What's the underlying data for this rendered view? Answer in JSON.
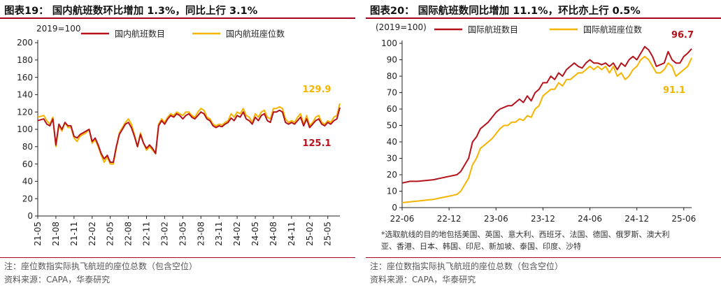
{
  "colors": {
    "domestic_flights": "#b5121b",
    "domestic_seats": "#f5b400",
    "accent": "#a8001e"
  },
  "chart_data": [
    {
      "type": "line",
      "title": "图表19： 国内航班数环比增加 1.3%，同比上行 3.1%",
      "base_label": "2019=100",
      "ylim": [
        0,
        200
      ],
      "yticks": [
        "0",
        "20",
        "40",
        "60",
        "80",
        "100",
        "120",
        "140",
        "160",
        "180",
        "200"
      ],
      "xticks": [
        "21-05",
        "21-08",
        "21-11",
        "22-02",
        "22-05",
        "22-08",
        "22-11",
        "23-02",
        "23-05",
        "23-08",
        "23-11",
        "24-02",
        "24-05",
        "24-08",
        "24-11",
        "25-02",
        "25-05"
      ],
      "xrange_months": [
        "21-05",
        "25-07"
      ],
      "grid": false,
      "legend_position": "top",
      "annotations": [
        {
          "text": "129.9",
          "series": "国内航班座位数"
        },
        {
          "text": "125.1",
          "series": "国内航班数目"
        }
      ],
      "series": [
        {
          "name": "国内航班数目",
          "color": "#b5121b",
          "x": [
            "21-05",
            "21-06",
            "21-06",
            "21-07",
            "21-07",
            "21-08",
            "21-08",
            "21-09",
            "21-09",
            "21-10",
            "21-10",
            "21-11",
            "21-11",
            "21-12",
            "21-12",
            "22-01",
            "22-01",
            "22-02",
            "22-02",
            "22-03",
            "22-03",
            "22-04",
            "22-04",
            "22-05",
            "22-05",
            "22-06",
            "22-06",
            "22-07",
            "22-07",
            "22-08",
            "22-08",
            "22-09",
            "22-09",
            "22-10",
            "22-10",
            "22-11",
            "22-11",
            "22-12",
            "22-12",
            "23-01",
            "23-01",
            "23-02",
            "23-02",
            "23-03",
            "23-03",
            "23-04",
            "23-04",
            "23-05",
            "23-05",
            "23-06",
            "23-06",
            "23-07",
            "23-07",
            "23-08",
            "23-08",
            "23-09",
            "23-09",
            "23-10",
            "23-10",
            "23-11",
            "23-11",
            "23-12",
            "23-12",
            "24-01",
            "24-01",
            "24-02",
            "24-02",
            "24-03",
            "24-03",
            "24-04",
            "24-04",
            "24-05",
            "24-05",
            "24-06",
            "24-06",
            "24-07",
            "24-07",
            "24-08",
            "24-08",
            "24-09",
            "24-09",
            "24-10",
            "24-10",
            "24-11",
            "24-11",
            "24-12",
            "24-12",
            "25-01",
            "25-01",
            "25-02",
            "25-02",
            "25-03",
            "25-03",
            "25-04",
            "25-04",
            "25-05",
            "25-05",
            "25-06",
            "25-06",
            "25-07"
          ],
          "values": [
            110,
            112,
            106,
            104,
            112,
            82,
            106,
            100,
            108,
            104,
            104,
            92,
            90,
            94,
            96,
            98,
            100,
            86,
            90,
            82,
            72,
            66,
            70,
            62,
            62,
            80,
            94,
            100,
            106,
            108,
            102,
            92,
            80,
            94,
            84,
            78,
            82,
            78,
            72,
            104,
            110,
            106,
            112,
            116,
            114,
            118,
            116,
            112,
            116,
            118,
            114,
            112,
            116,
            120,
            118,
            112,
            110,
            104,
            102,
            104,
            103,
            106,
            108,
            113,
            110,
            116,
            114,
            120,
            112,
            110,
            106,
            114,
            110,
            116,
            118,
            110,
            108,
            120,
            120,
            122,
            120,
            108,
            106,
            108,
            106,
            110,
            114,
            104,
            112,
            102,
            106,
            110,
            112,
            106,
            104,
            108,
            106,
            110,
            112,
            125.1
          ]
        },
        {
          "name": "国内航班座位数",
          "color": "#f5b400",
          "x": [
            "21-05",
            "21-06",
            "21-06",
            "21-07",
            "21-07",
            "21-08",
            "21-08",
            "21-09",
            "21-09",
            "21-10",
            "21-10",
            "21-11",
            "21-11",
            "21-12",
            "21-12",
            "22-01",
            "22-01",
            "22-02",
            "22-02",
            "22-03",
            "22-03",
            "22-04",
            "22-04",
            "22-05",
            "22-05",
            "22-06",
            "22-06",
            "22-07",
            "22-07",
            "22-08",
            "22-08",
            "22-09",
            "22-09",
            "22-10",
            "22-10",
            "22-11",
            "22-11",
            "22-12",
            "22-12",
            "23-01",
            "23-01",
            "23-02",
            "23-02",
            "23-03",
            "23-03",
            "23-04",
            "23-04",
            "23-05",
            "23-05",
            "23-06",
            "23-06",
            "23-07",
            "23-07",
            "23-08",
            "23-08",
            "23-09",
            "23-09",
            "23-10",
            "23-10",
            "23-11",
            "23-11",
            "23-12",
            "23-12",
            "24-01",
            "24-01",
            "24-02",
            "24-02",
            "24-03",
            "24-03",
            "24-04",
            "24-04",
            "24-05",
            "24-05",
            "24-06",
            "24-06",
            "24-07",
            "24-07",
            "24-08",
            "24-08",
            "24-09",
            "24-09",
            "24-10",
            "24-10",
            "24-11",
            "24-11",
            "24-12",
            "24-12",
            "25-01",
            "25-01",
            "25-02",
            "25-02",
            "25-03",
            "25-03",
            "25-04",
            "25-04",
            "25-05",
            "25-05",
            "25-06",
            "25-06",
            "25-07"
          ],
          "values": [
            114,
            116,
            110,
            106,
            114,
            80,
            104,
            98,
            108,
            102,
            102,
            90,
            86,
            92,
            94,
            96,
            100,
            84,
            88,
            80,
            70,
            62,
            68,
            60,
            60,
            78,
            96,
            102,
            108,
            112,
            106,
            94,
            80,
            96,
            84,
            76,
            80,
            76,
            72,
            106,
            112,
            108,
            114,
            118,
            116,
            120,
            118,
            116,
            120,
            120,
            116,
            114,
            120,
            124,
            122,
            114,
            112,
            106,
            104,
            106,
            105,
            108,
            110,
            118,
            114,
            120,
            118,
            124,
            116,
            114,
            108,
            118,
            114,
            120,
            122,
            114,
            112,
            124,
            124,
            126,
            124,
            112,
            108,
            110,
            108,
            114,
            118,
            106,
            116,
            104,
            108,
            114,
            116,
            108,
            106,
            110,
            108,
            114,
            116,
            129.9
          ]
        }
      ]
    },
    {
      "type": "line",
      "title": "图表20： 国际航班数同比增加 11.1%，环比亦上行 0.5%",
      "base_label": "(2019=100)",
      "ylim": [
        0,
        100
      ],
      "yticks": [
        "0",
        "10",
        "20",
        "30",
        "40",
        "50",
        "60",
        "70",
        "80",
        "90",
        "100"
      ],
      "xticks": [
        "22-06",
        "22-12",
        "23-06",
        "23-12",
        "24-06",
        "24-12",
        "25-06"
      ],
      "xrange_months": [
        "22-06",
        "25-07"
      ],
      "grid": false,
      "legend_position": "top",
      "annotations": [
        {
          "text": "96.7",
          "series": "国际航班数目"
        },
        {
          "text": "91.1",
          "series": "国际航班座位数"
        }
      ],
      "footnote": [
        "*选取航线的目的地包括美国、英国、意大利、西班牙、法国、德国、俄罗斯、澳大利",
        "亚、香港、日本、韩国、印尼、新加坡、泰国、印度、沙特"
      ],
      "series": [
        {
          "name": "国际航班数目",
          "color": "#b5121b",
          "x": [
            "22-06",
            "22-07",
            "22-08",
            "22-09",
            "22-10",
            "22-11",
            "22-12",
            "23-01",
            "23-01",
            "23-02",
            "23-02",
            "23-03",
            "23-03",
            "23-04",
            "23-04",
            "23-05",
            "23-05",
            "23-06",
            "23-06",
            "23-07",
            "23-07",
            "23-08",
            "23-08",
            "23-09",
            "23-09",
            "23-10",
            "23-10",
            "23-11",
            "23-11",
            "23-12",
            "23-12",
            "24-01",
            "24-01",
            "24-02",
            "24-02",
            "24-03",
            "24-03",
            "24-04",
            "24-04",
            "24-05",
            "24-05",
            "24-06",
            "24-06",
            "24-07",
            "24-07",
            "24-08",
            "24-08",
            "24-09",
            "24-09",
            "24-10",
            "24-10",
            "24-11",
            "24-11",
            "24-12",
            "24-12",
            "25-01",
            "25-01",
            "25-02",
            "25-02",
            "25-03",
            "25-03",
            "25-04",
            "25-04",
            "25-05",
            "25-05",
            "25-06",
            "25-06",
            "25-07"
          ],
          "values": [
            15,
            16,
            16,
            16.5,
            17,
            18,
            19,
            20,
            22,
            26,
            30,
            40,
            43,
            48,
            50,
            52,
            55,
            58,
            60,
            61,
            62,
            62,
            64,
            66,
            64,
            68,
            65,
            70,
            72,
            76,
            76,
            80,
            78,
            82,
            80,
            84,
            86,
            88,
            86,
            85,
            88,
            90,
            88,
            88,
            87,
            88,
            86,
            88,
            84,
            88,
            86,
            90,
            92,
            90,
            94,
            98,
            96,
            92,
            86,
            87,
            88,
            95,
            90,
            88,
            88,
            92,
            94,
            96.7
          ]
        },
        {
          "name": "国际航班座位数",
          "color": "#f5b400",
          "x": [
            "22-06",
            "22-07",
            "22-08",
            "22-09",
            "22-10",
            "22-11",
            "22-12",
            "23-01",
            "23-01",
            "23-02",
            "23-02",
            "23-03",
            "23-03",
            "23-04",
            "23-04",
            "23-05",
            "23-05",
            "23-06",
            "23-06",
            "23-07",
            "23-07",
            "23-08",
            "23-08",
            "23-09",
            "23-09",
            "23-10",
            "23-10",
            "23-11",
            "23-11",
            "23-12",
            "23-12",
            "24-01",
            "24-01",
            "24-02",
            "24-02",
            "24-03",
            "24-03",
            "24-04",
            "24-04",
            "24-05",
            "24-05",
            "24-06",
            "24-06",
            "24-07",
            "24-07",
            "24-08",
            "24-08",
            "24-09",
            "24-09",
            "24-10",
            "24-10",
            "24-11",
            "24-11",
            "24-12",
            "24-12",
            "25-01",
            "25-01",
            "25-02",
            "25-02",
            "25-03",
            "25-03",
            "25-04",
            "25-04",
            "25-05",
            "25-05",
            "25-06",
            "25-06",
            "25-07"
          ],
          "values": [
            3,
            3.5,
            4,
            4.5,
            5,
            6,
            7,
            8,
            10,
            14,
            18,
            26,
            30,
            36,
            38,
            40,
            42,
            45,
            48,
            50,
            50,
            52,
            52,
            54,
            53,
            56,
            55,
            60,
            62,
            68,
            70,
            72,
            72,
            76,
            74,
            78,
            78,
            80,
            82,
            82,
            84,
            86,
            84,
            86,
            84,
            86,
            82,
            86,
            80,
            82,
            78,
            80,
            84,
            86,
            90,
            92,
            90,
            86,
            82,
            82,
            84,
            88,
            86,
            80,
            82,
            84,
            86,
            91.1
          ]
        }
      ]
    }
  ],
  "notes": {
    "left_note": "注：座位数指实际执飞航班的座位总数（包含空位）",
    "left_source": "资料来源：CAPA，华泰研究",
    "right_note": "注：座位数指实际执飞航班的座位总数（包含空位）",
    "right_source": "资料来源：CAPA，华泰研究"
  }
}
